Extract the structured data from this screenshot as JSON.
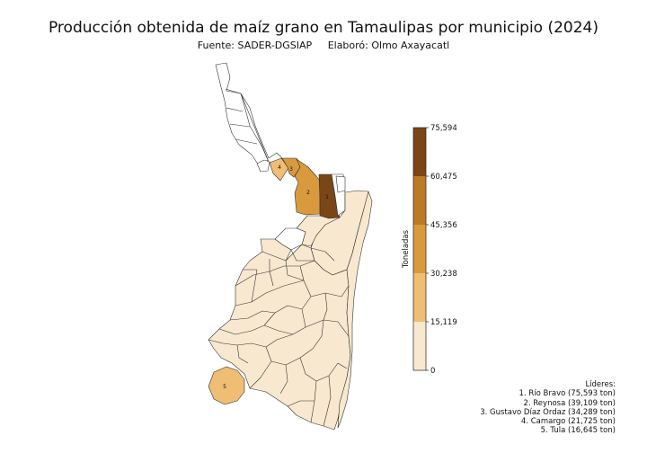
{
  "title": "Producción obtenida de maíz grano en Tamaulipas por municipio (2024)",
  "source": "Fuente: SADER-DGSIAP",
  "author": "Elaboró: Olmo Axayacatl",
  "colorbar": {
    "label": "Toneladas",
    "ticks": [
      "75,594",
      "60,475",
      "45,356",
      "30,238",
      "15,119",
      "0"
    ],
    "colors": [
      "#f8e8cf",
      "#efbd73",
      "#d99a3e",
      "#bd7a24",
      "#7a4617"
    ]
  },
  "leaders": {
    "heading": "Líderes:",
    "items": [
      "1. Río Bravo (75,593 ton)",
      "2. Reynosa (39,109 ton)",
      "3. Gustavo Díaz Ordaz (34,289 ton)",
      "4. Camargo (21,725 ton)",
      "5. Tula (16,645 ton)"
    ]
  },
  "map_labels": [
    "1",
    "2",
    "3",
    "4",
    "5"
  ]
}
